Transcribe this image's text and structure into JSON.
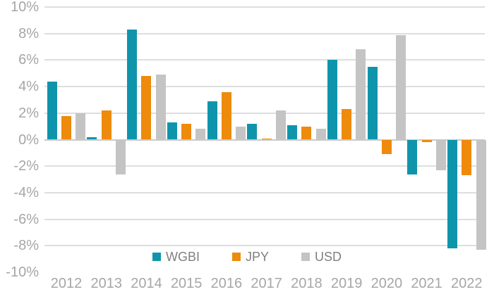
{
  "chart_data": {
    "type": "bar",
    "title": "",
    "xlabel": "",
    "ylabel": "",
    "categories": [
      "2012",
      "2013",
      "2014",
      "2015",
      "2016",
      "2017",
      "2018",
      "2019",
      "2020",
      "2021",
      "2022"
    ],
    "series": [
      {
        "name": "WGBI",
        "color": "#0f95ab",
        "values": [
          4.4,
          0.2,
          8.3,
          1.3,
          2.9,
          1.2,
          1.1,
          6.0,
          5.5,
          -2.6,
          -8.2
        ]
      },
      {
        "name": "JPY",
        "color": "#ee8a0c",
        "values": [
          1.8,
          2.2,
          4.8,
          1.2,
          3.6,
          0.1,
          1.0,
          2.3,
          -1.1,
          -0.2,
          -2.7
        ]
      },
      {
        "name": "USD",
        "color": "#c4c4c4",
        "values": [
          2.0,
          -2.6,
          4.9,
          0.8,
          1.0,
          2.2,
          0.8,
          6.8,
          7.9,
          -2.3,
          -8.3
        ]
      }
    ],
    "ylim": [
      -10,
      10
    ],
    "yticks": [
      {
        "label": "10%",
        "value": 10
      },
      {
        "label": "8%",
        "value": 8
      },
      {
        "label": "6%",
        "value": 6
      },
      {
        "label": "4%",
        "value": 4
      },
      {
        "label": "2%",
        "value": 2
      },
      {
        "label": "0%",
        "value": 0
      },
      {
        "label": "-2%",
        "value": -2
      },
      {
        "label": "-4%",
        "value": -4
      },
      {
        "label": "-6%",
        "value": -6
      },
      {
        "label": "-8%",
        "value": -8
      },
      {
        "label": "-10%",
        "value": -10
      }
    ],
    "grid": true,
    "legend_position": "bottom-center",
    "colors": {
      "gridline": "#dedede",
      "zero_line": "#c9c9c9",
      "axis_text": "#a6a6a6",
      "legend_text": "#7f7f7f",
      "background": "#ffffff"
    }
  }
}
